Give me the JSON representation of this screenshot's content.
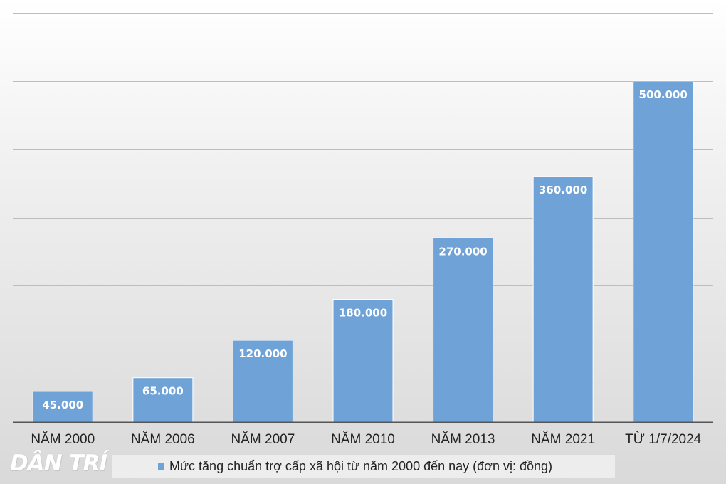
{
  "chart_data": {
    "type": "bar",
    "categories": [
      "NĂM 2000",
      "NĂM 2006",
      "NĂM 2007",
      "NĂM 2010",
      "NĂM 2013",
      "NĂM 2021",
      "TỪ 1/7/2024"
    ],
    "series": [
      {
        "name": "Mức tăng chuẩn trợ cấp xã hội từ năm 2000 đến nay (đơn vị: đồng)",
        "values": [
          45000,
          65000,
          120000,
          180000,
          270000,
          360000,
          500000
        ],
        "labels": [
          "45.000",
          "65.000",
          "120.000",
          "180.000",
          "270.000",
          "360.000",
          "500.000"
        ]
      }
    ],
    "ylim": [
      0,
      600000
    ],
    "yticks": [
      0,
      100000,
      200000,
      300000,
      400000,
      500000,
      600000
    ],
    "ytick_labels_shown": false,
    "grid": true,
    "legend_position": "bottom",
    "colors": {
      "bar": "#6fa3d7",
      "bar_edge": "#ffffff",
      "grid": "#bdbdbd",
      "axis": "#555555",
      "data_label": "#ffffff",
      "tick_label": "#222222",
      "legend_swatch": "#6fa3d7"
    }
  },
  "watermark": {
    "text": "DÂN TRÍ"
  }
}
